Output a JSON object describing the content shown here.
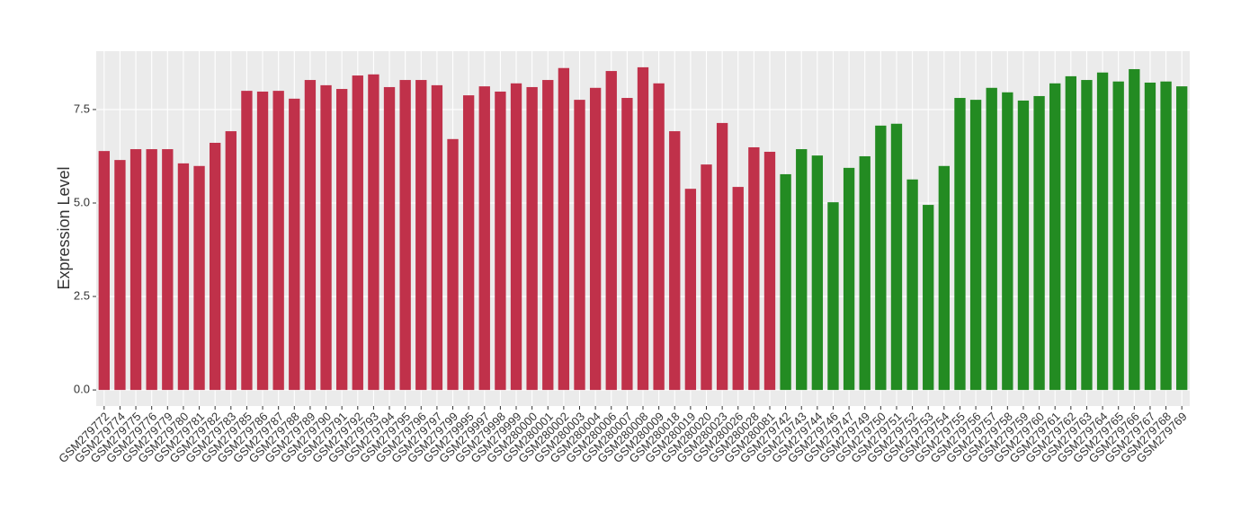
{
  "chart_data": {
    "type": "bar",
    "y_label": "Expression Level",
    "categories": [
      "GSM279772",
      "GSM279774",
      "GSM279775",
      "GSM279776",
      "GSM279779",
      "GSM279780",
      "GSM279781",
      "GSM279782",
      "GSM279783",
      "GSM279785",
      "GSM279786",
      "GSM279787",
      "GSM279788",
      "GSM279789",
      "GSM279790",
      "GSM279791",
      "GSM279792",
      "GSM279793",
      "GSM279794",
      "GSM279795",
      "GSM279796",
      "GSM279797",
      "GSM279799",
      "GSM279995",
      "GSM279997",
      "GSM279998",
      "GSM279999",
      "GSM280000",
      "GSM280001",
      "GSM280002",
      "GSM280003",
      "GSM280004",
      "GSM280006",
      "GSM280007",
      "GSM280008",
      "GSM280009",
      "GSM280018",
      "GSM280019",
      "GSM280020",
      "GSM280023",
      "GSM280026",
      "GSM280028",
      "GSM280081",
      "GSM279742",
      "GSM279743",
      "GSM279744",
      "GSM279746",
      "GSM279747",
      "GSM279749",
      "GSM279750",
      "GSM279751",
      "GSM279752",
      "GSM279753",
      "GSM279754",
      "GSM279755",
      "GSM279756",
      "GSM279757",
      "GSM279758",
      "GSM279759",
      "GSM279760",
      "GSM279761",
      "GSM279762",
      "GSM279763",
      "GSM279764",
      "GSM279765",
      "GSM279766",
      "GSM279767",
      "GSM279768",
      "GSM279769"
    ],
    "values": [
      6.39,
      6.15,
      6.44,
      6.44,
      6.44,
      6.06,
      5.99,
      6.61,
      6.92,
      8.0,
      7.98,
      8.0,
      7.79,
      8.29,
      8.15,
      8.05,
      8.41,
      8.44,
      8.1,
      8.29,
      8.29,
      8.15,
      6.71,
      7.88,
      8.12,
      7.98,
      8.2,
      8.1,
      8.29,
      8.61,
      7.76,
      8.08,
      8.53,
      7.81,
      8.63,
      8.2,
      6.92,
      5.38,
      6.03,
      7.14,
      5.43,
      6.49,
      6.37,
      5.77,
      6.44,
      6.27,
      5.02,
      5.94,
      6.25,
      7.07,
      7.12,
      5.63,
      4.95,
      5.99,
      7.81,
      7.76,
      8.08,
      7.96,
      7.74,
      7.86,
      8.2,
      8.39,
      8.29,
      8.49,
      8.25,
      8.58,
      8.22,
      8.25,
      8.12
    ],
    "colors": [
      "#c0314a",
      "#c0314a",
      "#c0314a",
      "#c0314a",
      "#c0314a",
      "#c0314a",
      "#c0314a",
      "#c0314a",
      "#c0314a",
      "#c0314a",
      "#c0314a",
      "#c0314a",
      "#c0314a",
      "#c0314a",
      "#c0314a",
      "#c0314a",
      "#c0314a",
      "#c0314a",
      "#c0314a",
      "#c0314a",
      "#c0314a",
      "#c0314a",
      "#c0314a",
      "#c0314a",
      "#c0314a",
      "#c0314a",
      "#c0314a",
      "#c0314a",
      "#c0314a",
      "#c0314a",
      "#c0314a",
      "#c0314a",
      "#c0314a",
      "#c0314a",
      "#c0314a",
      "#c0314a",
      "#c0314a",
      "#c0314a",
      "#c0314a",
      "#c0314a",
      "#c0314a",
      "#c0314a",
      "#c0314a",
      "#238b22",
      "#238b22",
      "#238b22",
      "#238b22",
      "#238b22",
      "#238b22",
      "#238b22",
      "#238b22",
      "#238b22",
      "#238b22",
      "#238b22",
      "#238b22",
      "#238b22",
      "#238b22",
      "#238b22",
      "#238b22",
      "#238b22",
      "#238b22",
      "#238b22",
      "#238b22",
      "#238b22",
      "#238b22",
      "#238b22",
      "#238b22",
      "#238b22",
      "#238b22"
    ],
    "ylim": [
      -0.43,
      9.06
    ],
    "yticks": [
      {
        "value": 0,
        "label": "0.0"
      },
      {
        "value": 2.5,
        "label": "2.5"
      },
      {
        "value": 5,
        "label": "5.0"
      },
      {
        "value": 7.5,
        "label": "7.5"
      }
    ],
    "grid": true
  }
}
